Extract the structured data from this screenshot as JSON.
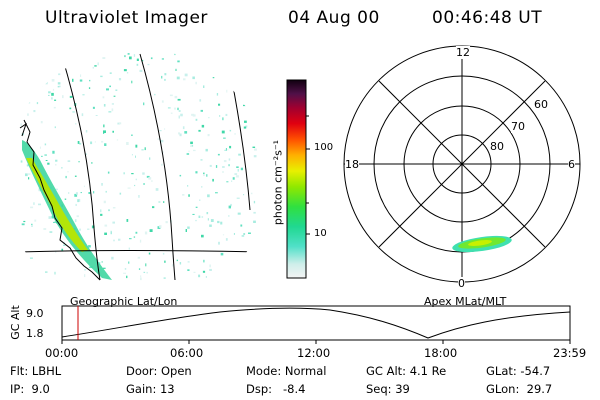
{
  "header": {
    "title": "Ultraviolet Imager",
    "date": "04 Aug 00",
    "time": "00:46:48 UT"
  },
  "colorbar": {
    "unit_label": "photon cm⁻²s⁻¹",
    "ticks": [
      "100",
      "10"
    ]
  },
  "polar": {
    "mlt_labels": {
      "top": "12",
      "left": "18",
      "right": "6",
      "bottom": "0"
    },
    "lat_labels": [
      "60",
      "70",
      "80"
    ]
  },
  "panel_labels": {
    "geo": "Geographic Lat/Lon",
    "apex": "Apex MLat/MLT"
  },
  "altitude_plot": {
    "ylabel": "GC Alt",
    "yticks": [
      "9.0",
      "1.8"
    ],
    "xticks": [
      "00:00",
      "06:00",
      "12:00",
      "18:00",
      "23:59"
    ],
    "marker_time": "00:46:48",
    "marker_color": "#cc0000"
  },
  "footer": {
    "row1": {
      "flt": "Flt: LBHL",
      "door": "Door: Open",
      "mode": "Mode: Normal",
      "gcalt": "GC Alt: 4.1 Re",
      "glat": "GLat: -54.7"
    },
    "row2": {
      "ip": "IP:  9.0",
      "gain": "Gain: 13",
      "dsp": "Dsp:   -8.4",
      "seq": "Seq: 39",
      "glon": "GLon:  29.7"
    }
  }
}
